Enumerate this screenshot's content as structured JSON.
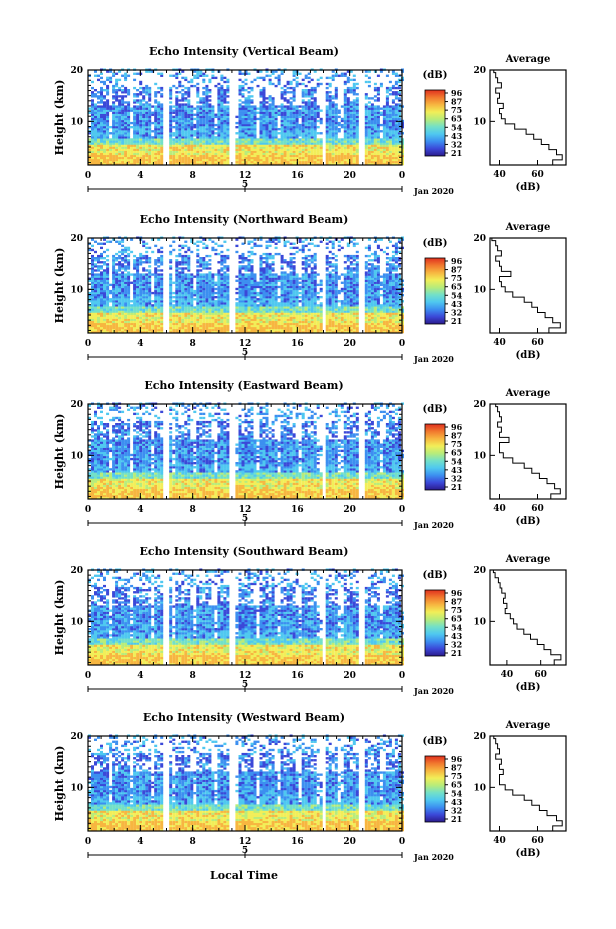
{
  "figure": {
    "xlabel": "Local Time",
    "date_label": "Jan 2020",
    "cb_unit": "(dB)",
    "avg_title": "Average",
    "avg_xlabel": "(dB)"
  },
  "colors": {
    "scale": [
      "#2b1a8c",
      "#3b48d8",
      "#3c8ff0",
      "#4fc8f0",
      "#73e0c8",
      "#b8ec7a",
      "#f2ee58",
      "#f7b640",
      "#f1782e",
      "#e0301e"
    ]
  },
  "chart_data": [
    {
      "type": "heatmap",
      "title": "Echo Intensity (Vertical Beam)",
      "ylabel": "Height (km)",
      "x_ticks": [
        "0",
        "4",
        "8",
        "12",
        "16",
        "20",
        "0"
      ],
      "x_range": [
        0,
        24
      ],
      "y_ticks": [
        "20",
        "10"
      ],
      "y_range": [
        1.5,
        20
      ],
      "day_marker": "5",
      "colorbar_ticks": [
        "96",
        "87",
        "75",
        "65",
        "54",
        "43",
        "32",
        "21"
      ],
      "gaps": [
        [
          5.75,
          6.0
        ],
        [
          10.7,
          11.2
        ],
        [
          17.9,
          18.1
        ],
        [
          20.7,
          21.0
        ]
      ],
      "average": {
        "x_ticks": [
          "40",
          "60"
        ],
        "x_range": [
          35,
          75
        ],
        "y_ticks": [
          "20",
          "10"
        ],
        "y_range": [
          1.5,
          20
        ],
        "height": [
          2,
          3,
          4,
          5,
          6,
          7,
          8,
          9,
          10,
          11,
          12,
          13,
          14,
          15,
          16,
          17,
          18,
          19,
          20
        ],
        "db": [
          68,
          73,
          70,
          66,
          62,
          58,
          54,
          48,
          43,
          41,
          40,
          42,
          39,
          40,
          38,
          41,
          39,
          38,
          37
        ]
      }
    },
    {
      "type": "heatmap",
      "title": "Echo Intensity (Northward Beam)",
      "ylabel": "Height (km)",
      "x_ticks": [
        "0",
        "4",
        "8",
        "12",
        "16",
        "20",
        "0"
      ],
      "x_range": [
        0,
        24
      ],
      "y_ticks": [
        "20",
        "10"
      ],
      "y_range": [
        1.5,
        20
      ],
      "day_marker": "5",
      "colorbar_ticks": [
        "96",
        "87",
        "75",
        "65",
        "54",
        "43",
        "32",
        "21"
      ],
      "gaps": [
        [
          5.75,
          6.0
        ],
        [
          10.7,
          11.2
        ],
        [
          17.9,
          18.1
        ],
        [
          20.7,
          21.0
        ]
      ],
      "average": {
        "x_ticks": [
          "40",
          "60"
        ],
        "x_range": [
          35,
          75
        ],
        "y_ticks": [
          "20",
          "10"
        ],
        "y_range": [
          1.5,
          20
        ],
        "height": [
          2,
          3,
          4,
          5,
          6,
          7,
          8,
          9,
          10,
          11,
          12,
          13,
          14,
          15,
          16,
          17,
          18,
          19,
          20
        ],
        "db": [
          66,
          72,
          68,
          64,
          60,
          57,
          53,
          47,
          43,
          41,
          40,
          46,
          41,
          40,
          38,
          41,
          39,
          38,
          36
        ]
      }
    },
    {
      "type": "heatmap",
      "title": "Echo Intensity (Eastward Beam)",
      "ylabel": "Height (km)",
      "x_ticks": [
        "0",
        "4",
        "8",
        "12",
        "16",
        "20",
        "0"
      ],
      "x_range": [
        0,
        24
      ],
      "y_ticks": [
        "20",
        "10"
      ],
      "y_range": [
        1.5,
        20
      ],
      "day_marker": "5",
      "colorbar_ticks": [
        "96",
        "87",
        "75",
        "65",
        "54",
        "43",
        "32",
        "21"
      ],
      "gaps": [
        [
          5.75,
          6.0
        ],
        [
          10.7,
          11.2
        ],
        [
          17.9,
          18.1
        ],
        [
          20.7,
          21.0
        ]
      ],
      "average": {
        "x_ticks": [
          "40",
          "60"
        ],
        "x_range": [
          35,
          75
        ],
        "y_ticks": [
          "20",
          "10"
        ],
        "y_range": [
          1.5,
          20
        ],
        "height": [
          2,
          3,
          4,
          5,
          6,
          7,
          8,
          9,
          10,
          11,
          12,
          13,
          14,
          15,
          16,
          17,
          18,
          19,
          20
        ],
        "db": [
          67,
          72,
          69,
          65,
          61,
          57,
          53,
          47,
          42,
          40,
          40,
          45,
          40,
          41,
          39,
          41,
          40,
          39,
          38
        ]
      }
    },
    {
      "type": "heatmap",
      "title": "Echo Intensity (Southward Beam)",
      "ylabel": "Height (km)",
      "x_ticks": [
        "0",
        "4",
        "8",
        "12",
        "16",
        "20",
        "0"
      ],
      "x_range": [
        0,
        24
      ],
      "y_ticks": [
        "20",
        "10"
      ],
      "y_range": [
        1.5,
        20
      ],
      "day_marker": "5",
      "colorbar_ticks": [
        "96",
        "87",
        "75",
        "65",
        "54",
        "43",
        "32",
        "21"
      ],
      "gaps": [
        [
          5.75,
          6.0
        ],
        [
          10.7,
          11.2
        ],
        [
          17.9,
          18.1
        ],
        [
          20.7,
          21.0
        ]
      ],
      "average": {
        "x_ticks": [
          "40",
          "60"
        ],
        "x_range": [
          30,
          75
        ],
        "y_ticks": [
          "20",
          "10"
        ],
        "y_range": [
          1.5,
          20
        ],
        "height": [
          2,
          3,
          4,
          5,
          6,
          7,
          8,
          9,
          10,
          11,
          12,
          13,
          14,
          15,
          16,
          17,
          18,
          19,
          20
        ],
        "db": [
          68,
          72,
          66,
          62,
          58,
          54,
          50,
          46,
          44,
          42,
          39,
          40,
          38,
          39,
          37,
          36,
          35,
          33,
          32
        ]
      }
    },
    {
      "type": "heatmap",
      "title": "Echo Intensity (Westward Beam)",
      "ylabel": "Height (km)",
      "x_ticks": [
        "0",
        "4",
        "8",
        "12",
        "16",
        "20",
        "0"
      ],
      "x_range": [
        0,
        24
      ],
      "y_ticks": [
        "20",
        "10"
      ],
      "y_range": [
        1.5,
        20
      ],
      "day_marker": "5",
      "colorbar_ticks": [
        "96",
        "87",
        "75",
        "65",
        "54",
        "43",
        "32",
        "21"
      ],
      "gaps": [
        [
          5.75,
          6.0
        ],
        [
          10.7,
          11.2
        ],
        [
          17.9,
          18.1
        ],
        [
          20.7,
          21.0
        ]
      ],
      "average": {
        "x_ticks": [
          "40",
          "60"
        ],
        "x_range": [
          35,
          75
        ],
        "y_ticks": [
          "20",
          "10"
        ],
        "y_range": [
          1.5,
          20
        ],
        "height": [
          2,
          3,
          4,
          5,
          6,
          7,
          8,
          9,
          10,
          11,
          12,
          13,
          14,
          15,
          16,
          17,
          18,
          19,
          20
        ],
        "db": [
          68,
          73,
          70,
          65,
          61,
          57,
          53,
          47,
          43,
          40,
          40,
          42,
          40,
          41,
          38,
          40,
          39,
          38,
          37
        ]
      }
    }
  ]
}
